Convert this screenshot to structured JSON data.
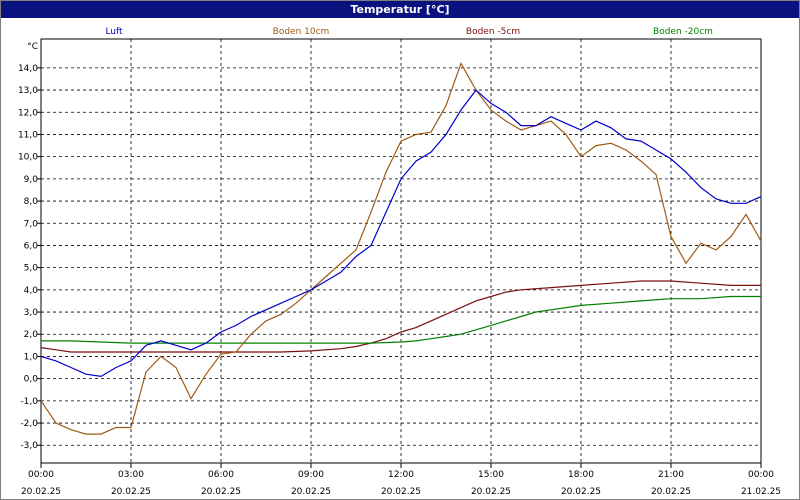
{
  "window": {
    "title": "Temperatur [°C]"
  },
  "chart_data": {
    "type": "line",
    "title": "Temperatur [°C]",
    "ylabel": "°C",
    "xlabel": "",
    "ylim": [
      -3.8,
      15.3
    ],
    "xlim": [
      0,
      24
    ],
    "yticks": [
      -3.0,
      -2.0,
      -1.0,
      0.0,
      1.0,
      2.0,
      3.0,
      4.0,
      5.0,
      6.0,
      7.0,
      8.0,
      9.0,
      10.0,
      11.0,
      12.0,
      13.0,
      14.0
    ],
    "ytick_labels": [
      "-3,0",
      "-2,0",
      "-1,0",
      "0,0",
      "1,0",
      "2,0",
      "3,0",
      "4,0",
      "5,0",
      "6,0",
      "7,0",
      "8,0",
      "9,0",
      "10,0",
      "11,0",
      "12,0",
      "13,0",
      "14,0"
    ],
    "xtick_labels": [
      {
        "time": "00:00",
        "date": "20.02.25"
      },
      {
        "time": "03:00",
        "date": "20.02.25"
      },
      {
        "time": "06:00",
        "date": "20.02.25"
      },
      {
        "time": "09:00",
        "date": "20.02.25"
      },
      {
        "time": "12:00",
        "date": "20.02.25"
      },
      {
        "time": "15:00",
        "date": "20.02.25"
      },
      {
        "time": "18:00",
        "date": "20.02.25"
      },
      {
        "time": "21:00",
        "date": "20.02.25"
      },
      {
        "time": "00:00",
        "date": "21.02.25"
      }
    ],
    "grid": true,
    "legend_position": "top",
    "series": [
      {
        "name": "Luft",
        "color": "#0000cc",
        "x": [
          0,
          0.5,
          1,
          1.5,
          2,
          2.5,
          3,
          3.5,
          4,
          4.5,
          5,
          5.5,
          6,
          6.5,
          7,
          7.5,
          8,
          8.5,
          9,
          9.5,
          10,
          10.5,
          11,
          11.5,
          12,
          12.5,
          13,
          13.5,
          14,
          14.5,
          15,
          15.5,
          16,
          16.5,
          17,
          17.5,
          18,
          18.5,
          19,
          19.5,
          20,
          20.5,
          21,
          21.5,
          22,
          22.5,
          23,
          23.5,
          24
        ],
        "y": [
          1.0,
          0.8,
          0.5,
          0.2,
          0.1,
          0.5,
          0.8,
          1.5,
          1.7,
          1.5,
          1.3,
          1.6,
          2.1,
          2.4,
          2.8,
          3.1,
          3.4,
          3.7,
          4.0,
          4.4,
          4.8,
          5.5,
          6.0,
          7.5,
          9.0,
          9.8,
          10.2,
          11.0,
          12.1,
          13.0,
          12.4,
          12.0,
          11.4,
          11.4,
          11.8,
          11.5,
          11.2,
          11.6,
          11.3,
          10.8,
          10.7,
          10.3,
          9.9,
          9.3,
          8.6,
          8.1,
          7.9,
          7.9,
          8.2
        ]
      },
      {
        "name": "Boden 10cm",
        "color": "#a05a14",
        "x": [
          0,
          0.5,
          1,
          1.5,
          2,
          2.5,
          3,
          3.5,
          4,
          4.5,
          5,
          5.5,
          6,
          6.5,
          7,
          7.5,
          8,
          8.5,
          9,
          9.5,
          10,
          10.5,
          11,
          11.5,
          12,
          12.5,
          13,
          13.5,
          14,
          14.5,
          15,
          15.5,
          16,
          16.5,
          17,
          17.5,
          18,
          18.5,
          19,
          19.5,
          20,
          20.5,
          21,
          21.5,
          22,
          22.5,
          23,
          23.5,
          24
        ],
        "y": [
          -1.0,
          -2.0,
          -2.3,
          -2.5,
          -2.5,
          -2.2,
          -2.2,
          0.3,
          1.0,
          0.5,
          -0.9,
          0.2,
          1.1,
          1.2,
          2.0,
          2.6,
          2.9,
          3.4,
          4.0,
          4.6,
          5.2,
          5.8,
          7.5,
          9.3,
          10.7,
          11.0,
          11.1,
          12.3,
          14.2,
          13.0,
          12.1,
          11.6,
          11.2,
          11.4,
          11.6,
          11.0,
          10.0,
          10.5,
          10.6,
          10.3,
          9.8,
          9.2,
          6.4,
          5.2,
          6.1,
          5.8,
          6.4,
          7.4,
          6.2
        ]
      },
      {
        "name": "Boden -5cm",
        "color": "#7a0f0f",
        "x": [
          0,
          0.5,
          1,
          2,
          3,
          4,
          5,
          6,
          7,
          8,
          9,
          10,
          10.5,
          11,
          11.5,
          12,
          12.5,
          13,
          13.5,
          14,
          14.5,
          15,
          15.5,
          16,
          17,
          18,
          19,
          20,
          21,
          22,
          23,
          24
        ],
        "y": [
          1.4,
          1.3,
          1.2,
          1.2,
          1.2,
          1.2,
          1.2,
          1.2,
          1.2,
          1.2,
          1.25,
          1.35,
          1.45,
          1.6,
          1.8,
          2.1,
          2.3,
          2.6,
          2.9,
          3.2,
          3.5,
          3.7,
          3.9,
          4.0,
          4.1,
          4.2,
          4.3,
          4.4,
          4.4,
          4.3,
          4.2,
          4.2
        ]
      },
      {
        "name": "Boden -20cm",
        "color": "#008000",
        "x": [
          0,
          1,
          2,
          3,
          4,
          5,
          6,
          7,
          8,
          9,
          10,
          11,
          12,
          12.5,
          13,
          13.5,
          14,
          14.5,
          15,
          15.5,
          16,
          16.5,
          17,
          17.5,
          18,
          19,
          20,
          21,
          22,
          23,
          24
        ],
        "y": [
          1.7,
          1.7,
          1.65,
          1.6,
          1.6,
          1.6,
          1.6,
          1.6,
          1.6,
          1.6,
          1.6,
          1.6,
          1.65,
          1.7,
          1.8,
          1.9,
          2.0,
          2.2,
          2.4,
          2.6,
          2.8,
          3.0,
          3.1,
          3.2,
          3.3,
          3.4,
          3.5,
          3.6,
          3.6,
          3.7,
          3.7
        ]
      }
    ]
  }
}
